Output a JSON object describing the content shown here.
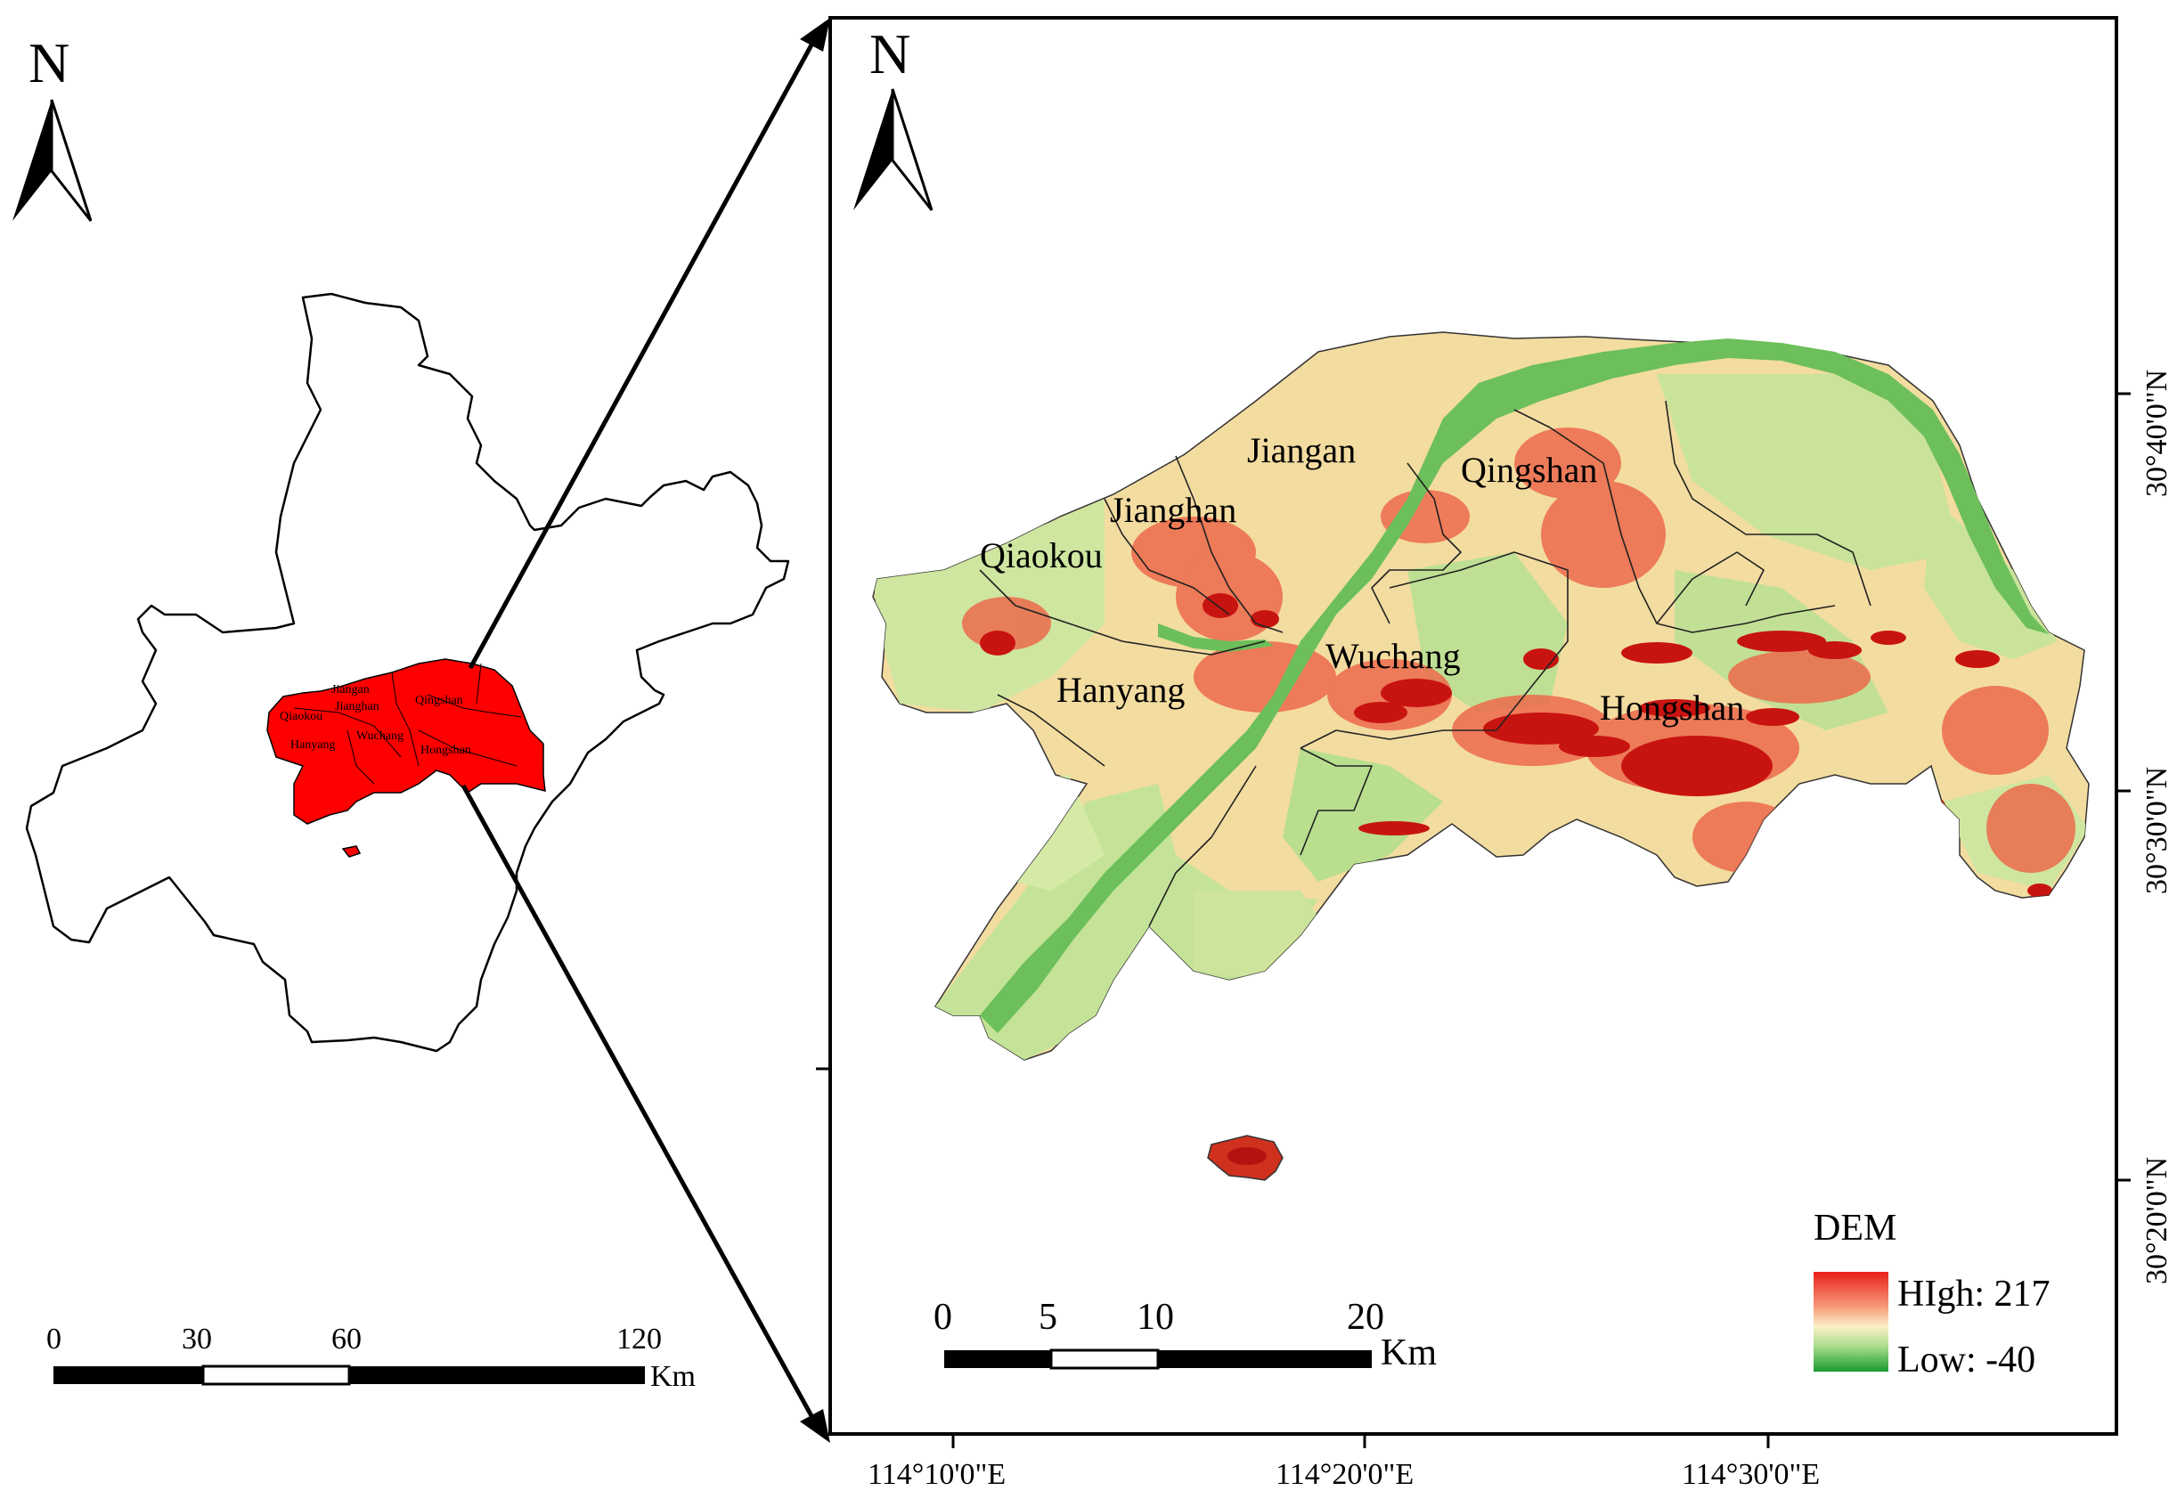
{
  "north_label": "N",
  "overview": {
    "districts": [
      "Jiangan",
      "Qiaokou",
      "Jianghan",
      "Qingshan",
      "Hanyang",
      "Wuchang",
      "Hongshan"
    ],
    "scale_labels": [
      "0",
      "30",
      "60",
      "120"
    ],
    "scale_unit": "Km"
  },
  "detail": {
    "districts": [
      "Jiangan",
      "Jianghan",
      "Qiaokou",
      "Qingshan",
      "Wuchang",
      "Hanyang",
      "Hongshan"
    ],
    "scale_labels": [
      "0",
      "5",
      "10",
      "20"
    ],
    "scale_unit": "Km",
    "lon_ticks": [
      "114°10'0\"E",
      "114°20'0\"E",
      "114°30'0\"E"
    ],
    "lat_ticks": [
      "30°40'0\"N",
      "30°30'0\"N",
      "30°20'0\"N"
    ]
  },
  "legend": {
    "title": "DEM",
    "high_label": "HIgh: 217",
    "low_label": "Low: -40",
    "high_color": "#e8201a",
    "low_color": "#1a9a32"
  },
  "colors": {
    "overview_fill": "#ff0000",
    "river": "#6cbf5a",
    "land_low": "#c9e39a",
    "land_mid": "#f4d9a0",
    "land_high": "#d8281e"
  }
}
